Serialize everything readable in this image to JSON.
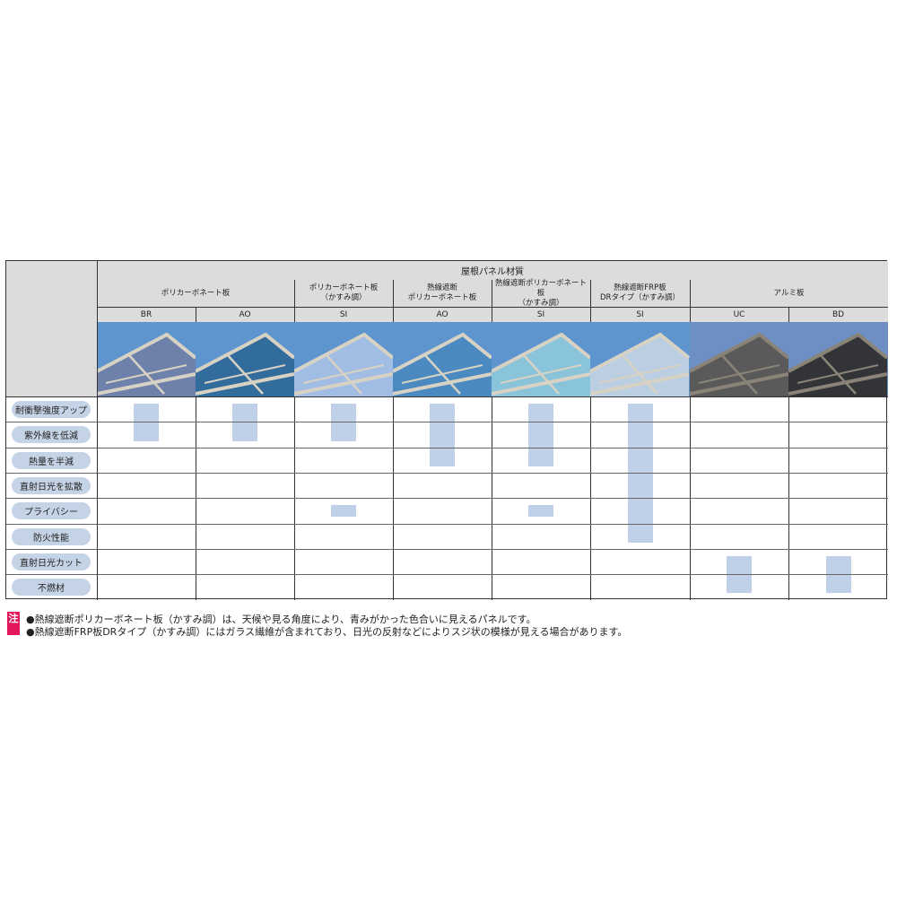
{
  "header": "屋根パネル材質",
  "groups": [
    {
      "label": "ポリカーボネート板",
      "span": 2
    },
    {
      "label": "ポリカーボネート板\n（かすみ調）",
      "span": 1
    },
    {
      "label": "熱線遮断\nポリカーボネート板",
      "span": 1
    },
    {
      "label": "熱線遮断ポリカーボネート板\n（かすみ調）",
      "span": 1
    },
    {
      "label": "熱線遮断FRP板\nDRタイプ（かすみ調）",
      "span": 1
    },
    {
      "label": "アルミ板",
      "span": 2
    }
  ],
  "columns": [
    {
      "code": "BR",
      "panel_color": "#6f7fa8",
      "features": [
        0,
        1
      ]
    },
    {
      "code": "AO",
      "panel_color": "#2f6898",
      "features": [
        0,
        1
      ]
    },
    {
      "code": "SI",
      "panel_color": "#a8c0e6",
      "features": [
        0,
        1,
        4
      ]
    },
    {
      "code": "AO",
      "panel_color": "#4a88c0",
      "features": [
        0,
        1,
        2
      ]
    },
    {
      "code": "SI",
      "panel_color": "#8ec8dc",
      "features": [
        0,
        1,
        2,
        4
      ]
    },
    {
      "code": "SI",
      "panel_color": "#c4d4e4",
      "features": [
        0,
        1,
        2,
        3,
        4,
        5
      ]
    },
    {
      "code": "UC",
      "panel_color": "#5a5650",
      "features": [
        6,
        7
      ]
    },
    {
      "code": "BD",
      "panel_color": "#2e2c2a",
      "features": [
        6,
        7
      ]
    }
  ],
  "features": [
    "耐衝撃強度アップ",
    "紫外線を低減",
    "熱量を半減",
    "直射日光を拡散",
    "プライバシー",
    "防火性能",
    "直射日光カット",
    "不燃材"
  ],
  "note": {
    "badge": "注",
    "lines": [
      "●熱線遮断ポリカーボネート板（かすみ調）は、天候や見る角度により、青みがかった色合いに見えるパネルです。",
      "●熱線遮断FRP板DRタイプ（かすみ調）にはガラス繊維が含まれており、日光の反射などによりスジ状の模様が見える場合があります。"
    ]
  },
  "colors": {
    "mark": "#c0d0e8",
    "sky": "#5f95cf",
    "badge": "#e2185b"
  }
}
